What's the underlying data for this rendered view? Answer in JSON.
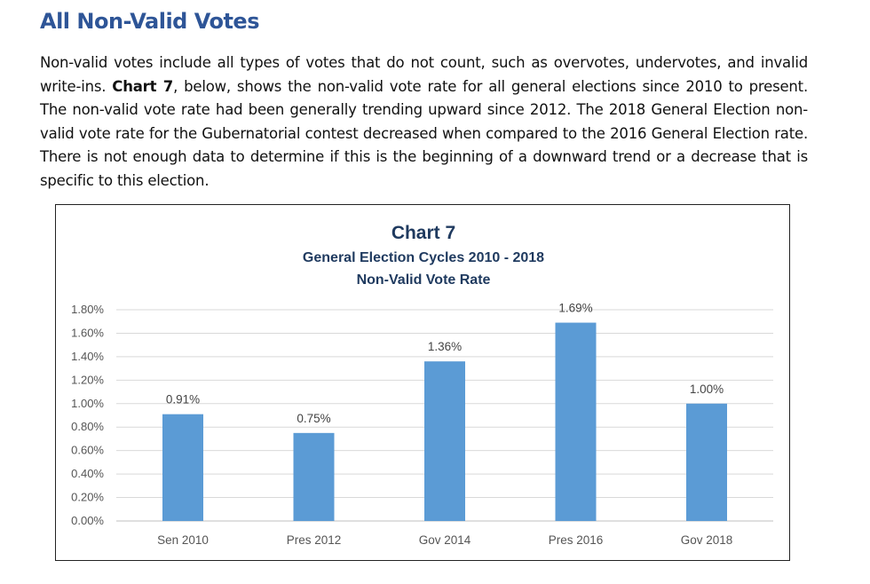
{
  "heading": "All Non-Valid Votes",
  "paragraph": {
    "before": "Non-valid votes include all types of votes that do not count, such as overvotes, undervotes, and invalid write-ins.  ",
    "bold": "Chart 7",
    "after": ", below, shows the non-valid vote rate for all general elections since 2010 to present.  The non-valid vote rate had been generally trending upward since 2012.  The 2018 General Election non-valid vote rate for the Gubernatorial contest decreased when compared to the 2016 General Election rate.  There is not enough data to determine if this is the beginning of a downward trend or a decrease that is specific to this election."
  },
  "chart_data": {
    "type": "bar",
    "title": "Chart 7",
    "subtitle": [
      "General Election Cycles 2010 - 2018",
      "Non-Valid Vote Rate"
    ],
    "categories": [
      "Sen 2010",
      "Pres 2012",
      "Gov 2014",
      "Pres 2016",
      "Gov  2018"
    ],
    "values": [
      0.91,
      0.75,
      1.36,
      1.69,
      1.0
    ],
    "data_labels": [
      "0.91%",
      "0.75%",
      "1.36%",
      "1.69%",
      "1.00%"
    ],
    "ylim": [
      0,
      1.8
    ],
    "yticks": [
      "0.00%",
      "0.20%",
      "0.40%",
      "0.60%",
      "0.80%",
      "1.00%",
      "1.20%",
      "1.40%",
      "1.60%",
      "1.80%"
    ],
    "grid": true,
    "bar_color": "#5b9bd5",
    "xlabel": "",
    "ylabel": ""
  }
}
